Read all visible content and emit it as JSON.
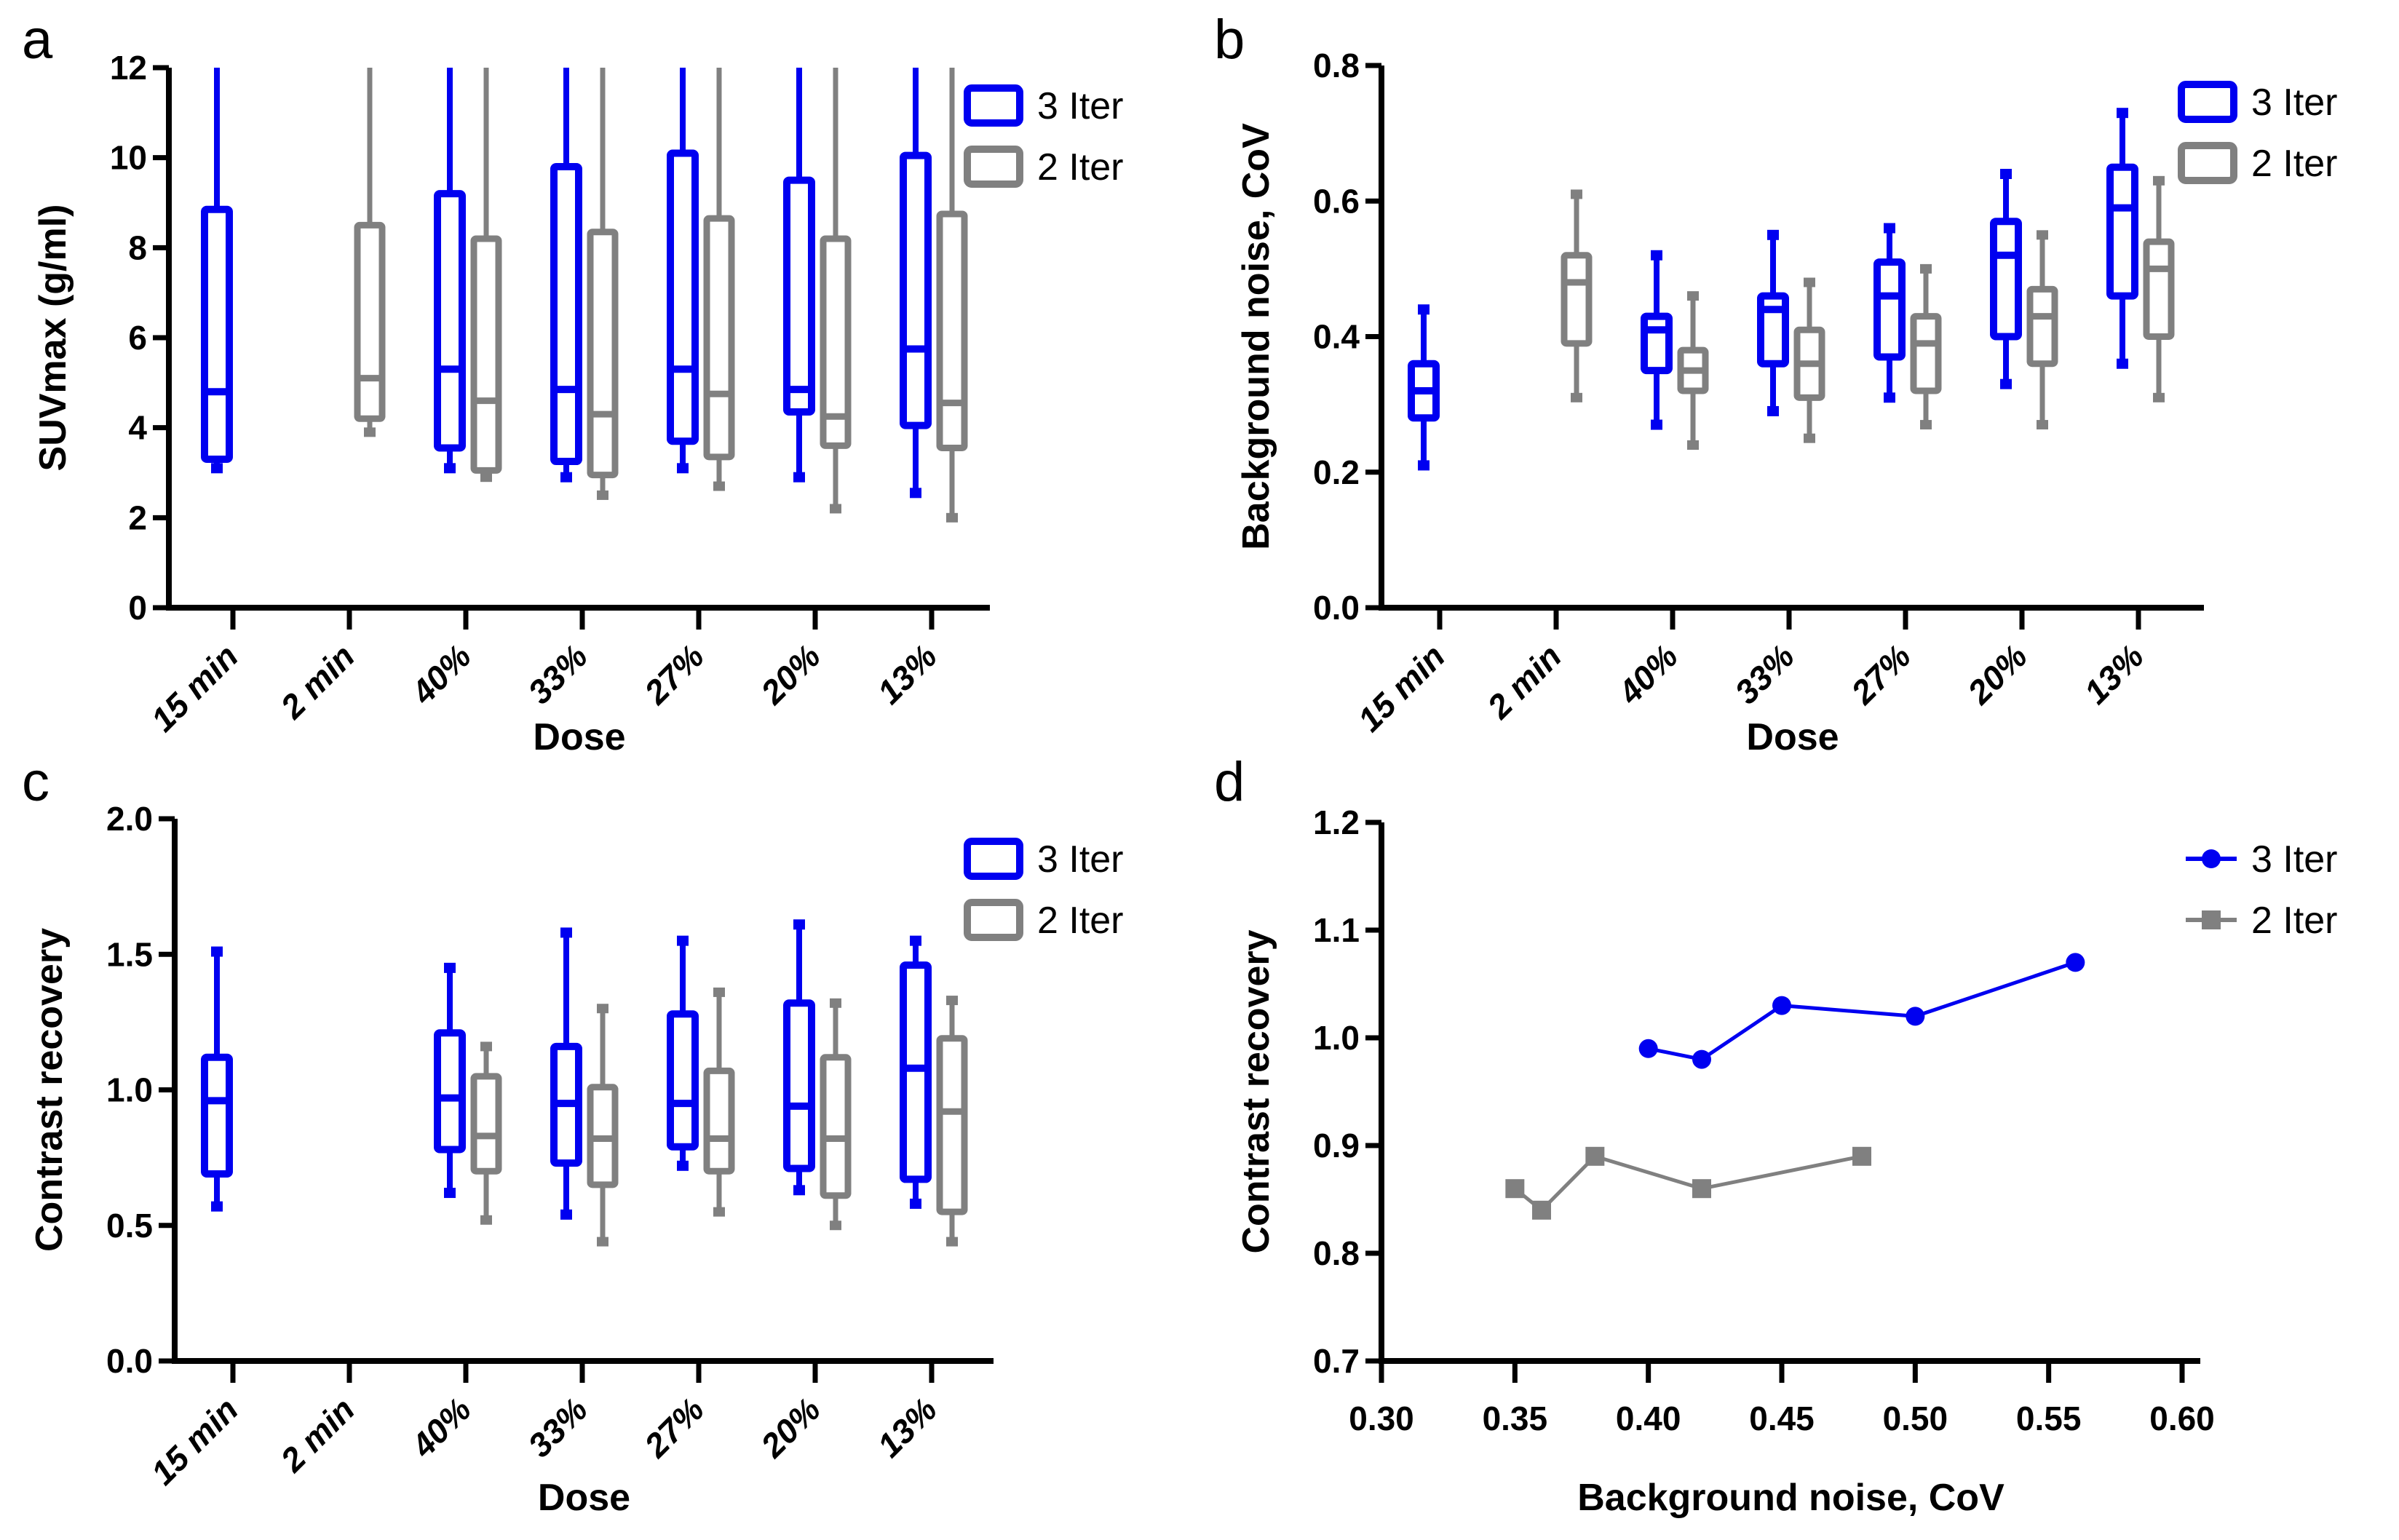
{
  "figure": {
    "panels": [
      "a",
      "b",
      "c",
      "d"
    ]
  },
  "colors": {
    "iter3": "#0000f0",
    "iter2": "#808080",
    "axis": "#000000"
  },
  "chart_data": [
    {
      "id": "a",
      "type": "box",
      "panel_label": "a",
      "xlabel": "Dose",
      "ylabel": "SUVmax (g/ml)",
      "ylim": [
        0,
        12
      ],
      "yticks": [
        "0",
        "2",
        "4",
        "6",
        "8",
        "10",
        "12"
      ],
      "ytick_values": [
        0,
        2,
        4,
        6,
        8,
        10,
        12
      ],
      "categories": [
        "15 min",
        "2 min",
        "40%",
        "33%",
        "27%",
        "20%",
        "13%"
      ],
      "legend": {
        "position": "top-right",
        "entries": [
          "3 Iter",
          "2 Iter"
        ]
      },
      "series": [
        {
          "name": "3 Iter",
          "color": "#0000f0",
          "boxes": [
            {
              "category": "15 min",
              "min": 3.1,
              "q1": 3.3,
              "median": 4.8,
              "q3": 8.85,
              "max": 12
            },
            null,
            {
              "category": "40%",
              "min": 3.1,
              "q1": 3.55,
              "median": 5.3,
              "q3": 9.2,
              "max": 12
            },
            {
              "category": "33%",
              "min": 2.9,
              "q1": 3.25,
              "median": 4.85,
              "q3": 9.8,
              "max": 12
            },
            {
              "category": "27%",
              "min": 3.1,
              "q1": 3.7,
              "median": 5.3,
              "q3": 10.1,
              "max": 12
            },
            {
              "category": "20%",
              "min": 2.9,
              "q1": 4.35,
              "median": 4.85,
              "q3": 9.5,
              "max": 12
            },
            {
              "category": "13%",
              "min": 2.55,
              "q1": 4.05,
              "median": 5.75,
              "q3": 10.05,
              "max": 12
            }
          ]
        },
        {
          "name": "2 Iter",
          "color": "#808080",
          "boxes": [
            null,
            {
              "category": "2 min",
              "min": 3.9,
              "q1": 4.2,
              "median": 5.1,
              "q3": 8.5,
              "max": 12
            },
            {
              "category": "40%",
              "min": 2.9,
              "q1": 3.05,
              "median": 4.6,
              "q3": 8.2,
              "max": 12
            },
            {
              "category": "33%",
              "min": 2.5,
              "q1": 2.95,
              "median": 4.3,
              "q3": 8.35,
              "max": 12
            },
            {
              "category": "27%",
              "min": 2.7,
              "q1": 3.35,
              "median": 4.75,
              "q3": 8.65,
              "max": 12
            },
            {
              "category": "20%",
              "min": 2.2,
              "q1": 3.6,
              "median": 4.25,
              "q3": 8.2,
              "max": 12
            },
            {
              "category": "13%",
              "min": 2.0,
              "q1": 3.55,
              "median": 4.55,
              "q3": 8.75,
              "max": 12
            }
          ]
        }
      ]
    },
    {
      "id": "b",
      "type": "box",
      "panel_label": "b",
      "xlabel": "Dose",
      "ylabel": "Background noise, CoV",
      "ylim": [
        0,
        0.8
      ],
      "yticks": [
        "0.0",
        "0.2",
        "0.4",
        "0.6",
        "0.8"
      ],
      "ytick_values": [
        0,
        0.2,
        0.4,
        0.6,
        0.8
      ],
      "categories": [
        "15 min",
        "2 min",
        "40%",
        "33%",
        "27%",
        "20%",
        "13%"
      ],
      "legend": {
        "position": "top-right",
        "entries": [
          "3 Iter",
          "2 Iter"
        ]
      },
      "series": [
        {
          "name": "3 Iter",
          "color": "#0000f0",
          "boxes": [
            {
              "category": "15 min",
              "min": 0.21,
              "q1": 0.28,
              "median": 0.32,
              "q3": 0.36,
              "max": 0.44
            },
            null,
            {
              "category": "40%",
              "min": 0.27,
              "q1": 0.35,
              "median": 0.41,
              "q3": 0.43,
              "max": 0.52
            },
            {
              "category": "33%",
              "min": 0.29,
              "q1": 0.36,
              "median": 0.44,
              "q3": 0.46,
              "max": 0.55
            },
            {
              "category": "27%",
              "min": 0.31,
              "q1": 0.37,
              "median": 0.46,
              "q3": 0.51,
              "max": 0.56
            },
            {
              "category": "20%",
              "min": 0.33,
              "q1": 0.4,
              "median": 0.52,
              "q3": 0.57,
              "max": 0.64
            },
            {
              "category": "13%",
              "min": 0.36,
              "q1": 0.46,
              "median": 0.59,
              "q3": 0.65,
              "max": 0.73
            }
          ]
        },
        {
          "name": "2 Iter",
          "color": "#808080",
          "boxes": [
            null,
            {
              "category": "2 min",
              "min": 0.31,
              "q1": 0.39,
              "median": 0.48,
              "q3": 0.52,
              "max": 0.61
            },
            {
              "category": "40%",
              "min": 0.24,
              "q1": 0.32,
              "median": 0.35,
              "q3": 0.38,
              "max": 0.46
            },
            {
              "category": "33%",
              "min": 0.25,
              "q1": 0.31,
              "median": 0.36,
              "q3": 0.41,
              "max": 0.48
            },
            {
              "category": "27%",
              "min": 0.27,
              "q1": 0.32,
              "median": 0.39,
              "q3": 0.43,
              "max": 0.5
            },
            {
              "category": "20%",
              "min": 0.27,
              "q1": 0.36,
              "median": 0.43,
              "q3": 0.47,
              "max": 0.55
            },
            {
              "category": "13%",
              "min": 0.31,
              "q1": 0.4,
              "median": 0.5,
              "q3": 0.54,
              "max": 0.63
            }
          ]
        }
      ]
    },
    {
      "id": "c",
      "type": "box",
      "panel_label": "c",
      "xlabel": "Dose",
      "ylabel": "Contrast recovery",
      "ylim": [
        0,
        2.0
      ],
      "yticks": [
        "0.0",
        "0.5",
        "1.0",
        "1.5",
        "2.0"
      ],
      "ytick_values": [
        0,
        0.5,
        1.0,
        1.5,
        2.0
      ],
      "categories": [
        "15 min",
        "2 min",
        "40%",
        "33%",
        "27%",
        "20%",
        "13%"
      ],
      "legend": {
        "position": "top-right",
        "entries": [
          "3 Iter",
          "2 Iter"
        ]
      },
      "series": [
        {
          "name": "3 Iter",
          "color": "#0000f0",
          "boxes": [
            {
              "category": "15 min",
              "min": 0.57,
              "q1": 0.69,
              "median": 0.96,
              "q3": 1.12,
              "max": 1.51
            },
            null,
            {
              "category": "40%",
              "min": 0.62,
              "q1": 0.78,
              "median": 0.97,
              "q3": 1.21,
              "max": 1.45
            },
            {
              "category": "33%",
              "min": 0.54,
              "q1": 0.73,
              "median": 0.95,
              "q3": 1.16,
              "max": 1.58
            },
            {
              "category": "27%",
              "min": 0.72,
              "q1": 0.79,
              "median": 0.95,
              "q3": 1.28,
              "max": 1.55
            },
            {
              "category": "20%",
              "min": 0.63,
              "q1": 0.71,
              "median": 0.94,
              "q3": 1.32,
              "max": 1.61
            },
            {
              "category": "13%",
              "min": 0.58,
              "q1": 0.67,
              "median": 1.08,
              "q3": 1.46,
              "max": 1.55
            }
          ]
        },
        {
          "name": "2 Iter",
          "color": "#808080",
          "boxes": [
            null,
            null,
            {
              "category": "40%",
              "min": 0.52,
              "q1": 0.7,
              "median": 0.83,
              "q3": 1.05,
              "max": 1.16
            },
            {
              "category": "33%",
              "min": 0.44,
              "q1": 0.65,
              "median": 0.82,
              "q3": 1.01,
              "max": 1.3
            },
            {
              "category": "27%",
              "min": 0.55,
              "q1": 0.7,
              "median": 0.82,
              "q3": 1.07,
              "max": 1.36
            },
            {
              "category": "20%",
              "min": 0.5,
              "q1": 0.61,
              "median": 0.82,
              "q3": 1.12,
              "max": 1.32
            },
            {
              "category": "13%",
              "min": 0.44,
              "q1": 0.55,
              "median": 0.92,
              "q3": 1.19,
              "max": 1.33
            }
          ]
        }
      ]
    },
    {
      "id": "d",
      "type": "line",
      "panel_label": "d",
      "xlabel": "Background noise, CoV",
      "ylabel": "Contrast recovery",
      "xlim": [
        0.3,
        0.6
      ],
      "ylim": [
        0.7,
        1.2
      ],
      "xticks": [
        "0.30",
        "0.35",
        "0.40",
        "0.45",
        "0.50",
        "0.55",
        "0.60"
      ],
      "xtick_values": [
        0.3,
        0.35,
        0.4,
        0.45,
        0.5,
        0.55,
        0.6
      ],
      "yticks": [
        "0.7",
        "0.8",
        "0.9",
        "1.0",
        "1.1",
        "1.2"
      ],
      "ytick_values": [
        0.7,
        0.8,
        0.9,
        1.0,
        1.1,
        1.2
      ],
      "legend": {
        "position": "top-right",
        "entries": [
          "3 Iter",
          "2 Iter"
        ]
      },
      "series": [
        {
          "name": "3 Iter",
          "color": "#0000f0",
          "marker": "circle",
          "x": [
            0.4,
            0.42,
            0.45,
            0.5,
            0.56
          ],
          "y": [
            0.99,
            0.98,
            1.03,
            1.02,
            1.07
          ]
        },
        {
          "name": "2 Iter",
          "color": "#808080",
          "marker": "square",
          "x": [
            0.35,
            0.36,
            0.38,
            0.42,
            0.48
          ],
          "y": [
            0.86,
            0.84,
            0.89,
            0.86,
            0.89
          ]
        }
      ]
    }
  ]
}
